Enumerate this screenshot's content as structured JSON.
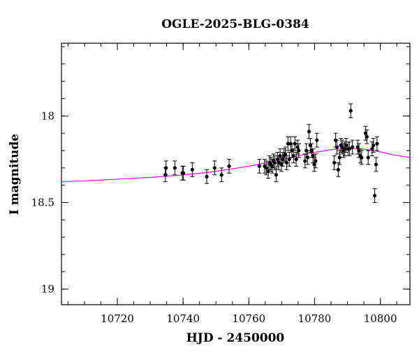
{
  "chart_data": {
    "type": "scatter",
    "title": "OGLE-2025-BLG-0384",
    "xlabel": "HJD - 2450000",
    "ylabel": "I magnitude",
    "xlim": [
      10703,
      10809
    ],
    "ylim": [
      19.09,
      17.58
    ],
    "y_inverted": true,
    "x_ticks": [
      10720,
      10740,
      10760,
      10780,
      10800
    ],
    "x_tick_labels": [
      "10720",
      "10740",
      "10760",
      "10780",
      "10800"
    ],
    "y_ticks": [
      18.0,
      18.5,
      19.0
    ],
    "y_tick_labels": [
      "18",
      "18.5",
      "19"
    ],
    "x_minor_step": 5,
    "y_minor_step": 0.1,
    "grid": false,
    "model_color": "#ff00ff",
    "point_color": "#000000",
    "series": [
      {
        "type": "scatter",
        "x": [
          10734.6,
          10734.8,
          10737.5,
          10739.8,
          10740.1,
          10742.8,
          10747.2,
          10749.6,
          10751.7,
          10754.0,
          10763.2,
          10764.8,
          10765.3,
          10765.9,
          10766.3,
          10766.7,
          10767.1,
          10767.5,
          10767.9,
          10768.3,
          10768.7,
          10769.1,
          10769.5,
          10769.9,
          10770.3,
          10770.7,
          10771.1,
          10771.5,
          10771.9,
          10772.3,
          10772.7,
          10773.1,
          10773.6,
          10774.0,
          10774.4,
          10774.8,
          10775.2,
          10777.1,
          10777.5,
          10777.9,
          10778.3,
          10778.7,
          10779.1,
          10779.5,
          10779.9,
          10780.3,
          10780.7,
          10786.0,
          10786.4,
          10786.8,
          10787.2,
          10787.6,
          10788.0,
          10788.4,
          10788.8,
          10789.2,
          10789.6,
          10790.2,
          10790.6,
          10791.0,
          10791.5,
          10793.1,
          10793.5,
          10793.9,
          10794.3,
          10795.5,
          10795.9,
          10796.3,
          10797.5,
          10797.9,
          10798.3,
          10798.7,
          10799.0
        ],
        "y": [
          18.34,
          18.3,
          18.3,
          18.33,
          18.33,
          18.31,
          18.35,
          18.3,
          18.34,
          18.29,
          18.29,
          18.29,
          18.3,
          18.32,
          18.27,
          18.28,
          18.29,
          18.26,
          18.27,
          18.34,
          18.25,
          18.27,
          18.23,
          18.28,
          18.25,
          18.23,
          18.22,
          18.27,
          18.16,
          18.25,
          18.16,
          18.2,
          18.23,
          18.16,
          18.25,
          18.18,
          18.2,
          18.26,
          18.2,
          18.24,
          18.09,
          18.17,
          18.2,
          18.23,
          18.28,
          18.26,
          18.14,
          18.27,
          18.14,
          18.18,
          18.31,
          18.24,
          18.17,
          18.18,
          18.2,
          18.19,
          18.17,
          18.19,
          18.19,
          17.97,
          18.18,
          18.18,
          18.2,
          18.23,
          18.24,
          18.1,
          18.12,
          18.24,
          18.19,
          18.17,
          18.46,
          18.28,
          18.16
        ],
        "err": [
          0.04,
          0.04,
          0.04,
          0.04,
          0.04,
          0.04,
          0.04,
          0.04,
          0.04,
          0.04,
          0.04,
          0.04,
          0.04,
          0.04,
          0.04,
          0.04,
          0.04,
          0.04,
          0.04,
          0.04,
          0.04,
          0.04,
          0.04,
          0.04,
          0.04,
          0.04,
          0.04,
          0.04,
          0.04,
          0.04,
          0.04,
          0.04,
          0.04,
          0.04,
          0.04,
          0.04,
          0.04,
          0.04,
          0.04,
          0.04,
          0.04,
          0.04,
          0.04,
          0.04,
          0.04,
          0.04,
          0.04,
          0.04,
          0.04,
          0.04,
          0.04,
          0.04,
          0.04,
          0.04,
          0.04,
          0.04,
          0.04,
          0.04,
          0.04,
          0.04,
          0.04,
          0.04,
          0.04,
          0.04,
          0.04,
          0.04,
          0.04,
          0.04,
          0.04,
          0.04,
          0.04,
          0.04,
          0.04
        ]
      },
      {
        "type": "line",
        "x": [
          10703,
          10710,
          10720,
          10730,
          10740,
          10748,
          10755,
          10760,
          10765,
          10770,
          10775,
          10780,
          10785,
          10788,
          10791,
          10794,
          10797,
          10800,
          10804,
          10809
        ],
        "y": [
          18.38,
          18.375,
          18.365,
          18.355,
          18.34,
          18.325,
          18.305,
          18.29,
          18.272,
          18.25,
          18.23,
          18.21,
          18.195,
          18.19,
          18.188,
          18.19,
          18.197,
          18.208,
          18.225,
          18.24
        ]
      }
    ]
  }
}
